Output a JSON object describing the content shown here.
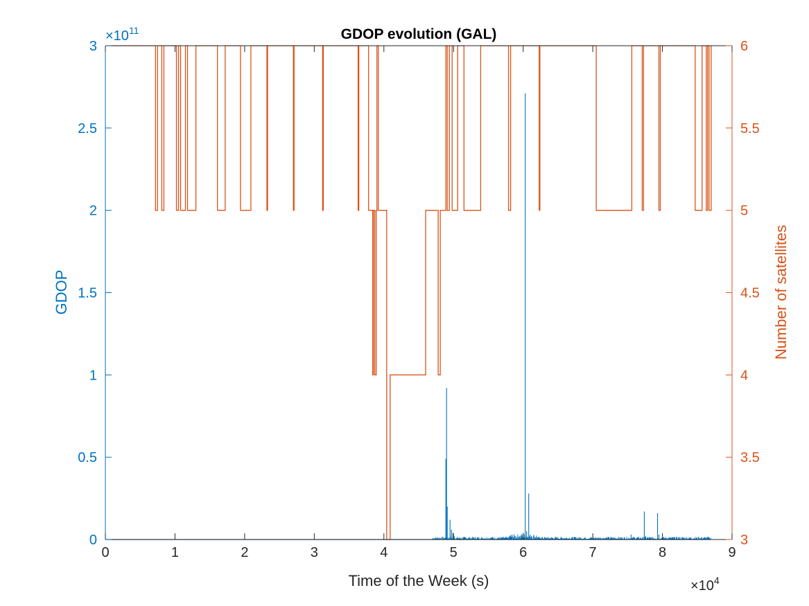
{
  "chart_data": {
    "type": "line",
    "title": "GDOP evolution (GAL)",
    "xlabel": "Time of the Week (s)",
    "ylabel_left": "GDOP",
    "ylabel_right": "Number of satellites",
    "x_exponent_label": "×10",
    "x_exponent": "4",
    "y_exponent_label": "×10",
    "y_exponent": "11",
    "xlim": [
      0,
      90000
    ],
    "ylim_left": [
      0,
      300000000000
    ],
    "ylim_right": [
      3,
      6
    ],
    "x_ticks": [
      0,
      10000,
      20000,
      30000,
      40000,
      50000,
      60000,
      70000,
      80000,
      90000
    ],
    "x_tick_labels": [
      "0",
      "1",
      "2",
      "3",
      "4",
      "5",
      "6",
      "7",
      "8",
      "9"
    ],
    "y_left_ticks": [
      0,
      50000000000,
      100000000000,
      150000000000,
      200000000000,
      250000000000,
      300000000000
    ],
    "y_left_tick_labels": [
      "0",
      "0.5",
      "1",
      "1.5",
      "2",
      "2.5",
      "3"
    ],
    "y_right_ticks": [
      3,
      3.5,
      4,
      4.5,
      5,
      5.5,
      6
    ],
    "y_right_tick_labels": [
      "3",
      "3.5",
      "4",
      "4.5",
      "5",
      "5.5",
      "6"
    ],
    "grid": false,
    "colors": {
      "left": "#0072BD",
      "right": "#D95319",
      "axis": "#262626"
    },
    "series": [
      {
        "axis": "left",
        "color": "#0072BD",
        "baseline": 0,
        "spikes": [
          [
            48900,
            49000000000
          ],
          [
            49000,
            92000000000
          ],
          [
            49100,
            20000000000
          ],
          [
            49500,
            12000000000
          ],
          [
            49700,
            6000000000
          ],
          [
            49900,
            4000000000
          ],
          [
            50100,
            2000000000
          ],
          [
            55500,
            1000000000
          ],
          [
            58000,
            1500000000
          ],
          [
            59500,
            2000000000
          ],
          [
            59800,
            3000000000
          ],
          [
            60000,
            4000000000
          ],
          [
            60300,
            271000000000
          ],
          [
            60500,
            5000000000
          ],
          [
            60800,
            28000000000
          ],
          [
            61200,
            2000000000
          ],
          [
            62500,
            1000000000
          ],
          [
            65000,
            500000000
          ],
          [
            75500,
            3000000000
          ],
          [
            77400,
            17000000000
          ],
          [
            77600,
            2000000000
          ],
          [
            79300,
            16000000000
          ],
          [
            79500,
            3000000000
          ],
          [
            80000,
            1000000000
          ],
          [
            84000,
            800000000
          ],
          [
            86000,
            500000000
          ]
        ],
        "noise_range": [
          47000,
          87000
        ]
      },
      {
        "axis": "right",
        "color": "#D95319",
        "steps": [
          [
            0,
            6
          ],
          [
            7200,
            5
          ],
          [
            7500,
            6
          ],
          [
            7900,
            6
          ],
          [
            8100,
            5
          ],
          [
            8400,
            6
          ],
          [
            10200,
            5
          ],
          [
            10500,
            6
          ],
          [
            10800,
            5
          ],
          [
            11500,
            6
          ],
          [
            11800,
            5
          ],
          [
            13000,
            6
          ],
          [
            16100,
            5
          ],
          [
            17200,
            6
          ],
          [
            19400,
            5
          ],
          [
            20900,
            6
          ],
          [
            23200,
            5
          ],
          [
            23300,
            6
          ],
          [
            27000,
            5
          ],
          [
            27100,
            6
          ],
          [
            31200,
            5
          ],
          [
            31300,
            6
          ],
          [
            36300,
            5
          ],
          [
            36400,
            6
          ],
          [
            37800,
            5
          ],
          [
            38400,
            4
          ],
          [
            38500,
            5
          ],
          [
            38700,
            4
          ],
          [
            38900,
            5
          ],
          [
            39000,
            6
          ],
          [
            39200,
            5
          ],
          [
            40400,
            3
          ],
          [
            40900,
            4
          ],
          [
            46000,
            5
          ],
          [
            47800,
            4
          ],
          [
            48100,
            5
          ],
          [
            48900,
            6
          ],
          [
            49100,
            5
          ],
          [
            49400,
            6
          ],
          [
            49800,
            5
          ],
          [
            50600,
            6
          ],
          [
            51500,
            5
          ],
          [
            53900,
            6
          ],
          [
            57900,
            5
          ],
          [
            58200,
            6
          ],
          [
            62300,
            5
          ],
          [
            62400,
            6
          ],
          [
            70500,
            5
          ],
          [
            75600,
            6
          ],
          [
            77100,
            5
          ],
          [
            77300,
            6
          ],
          [
            79500,
            5
          ],
          [
            79700,
            6
          ],
          [
            84700,
            5
          ],
          [
            85700,
            6
          ],
          [
            86300,
            5
          ],
          [
            86500,
            6
          ],
          [
            86700,
            5
          ],
          [
            87000,
            6
          ]
        ],
        "x_end": 87000
      }
    ]
  }
}
